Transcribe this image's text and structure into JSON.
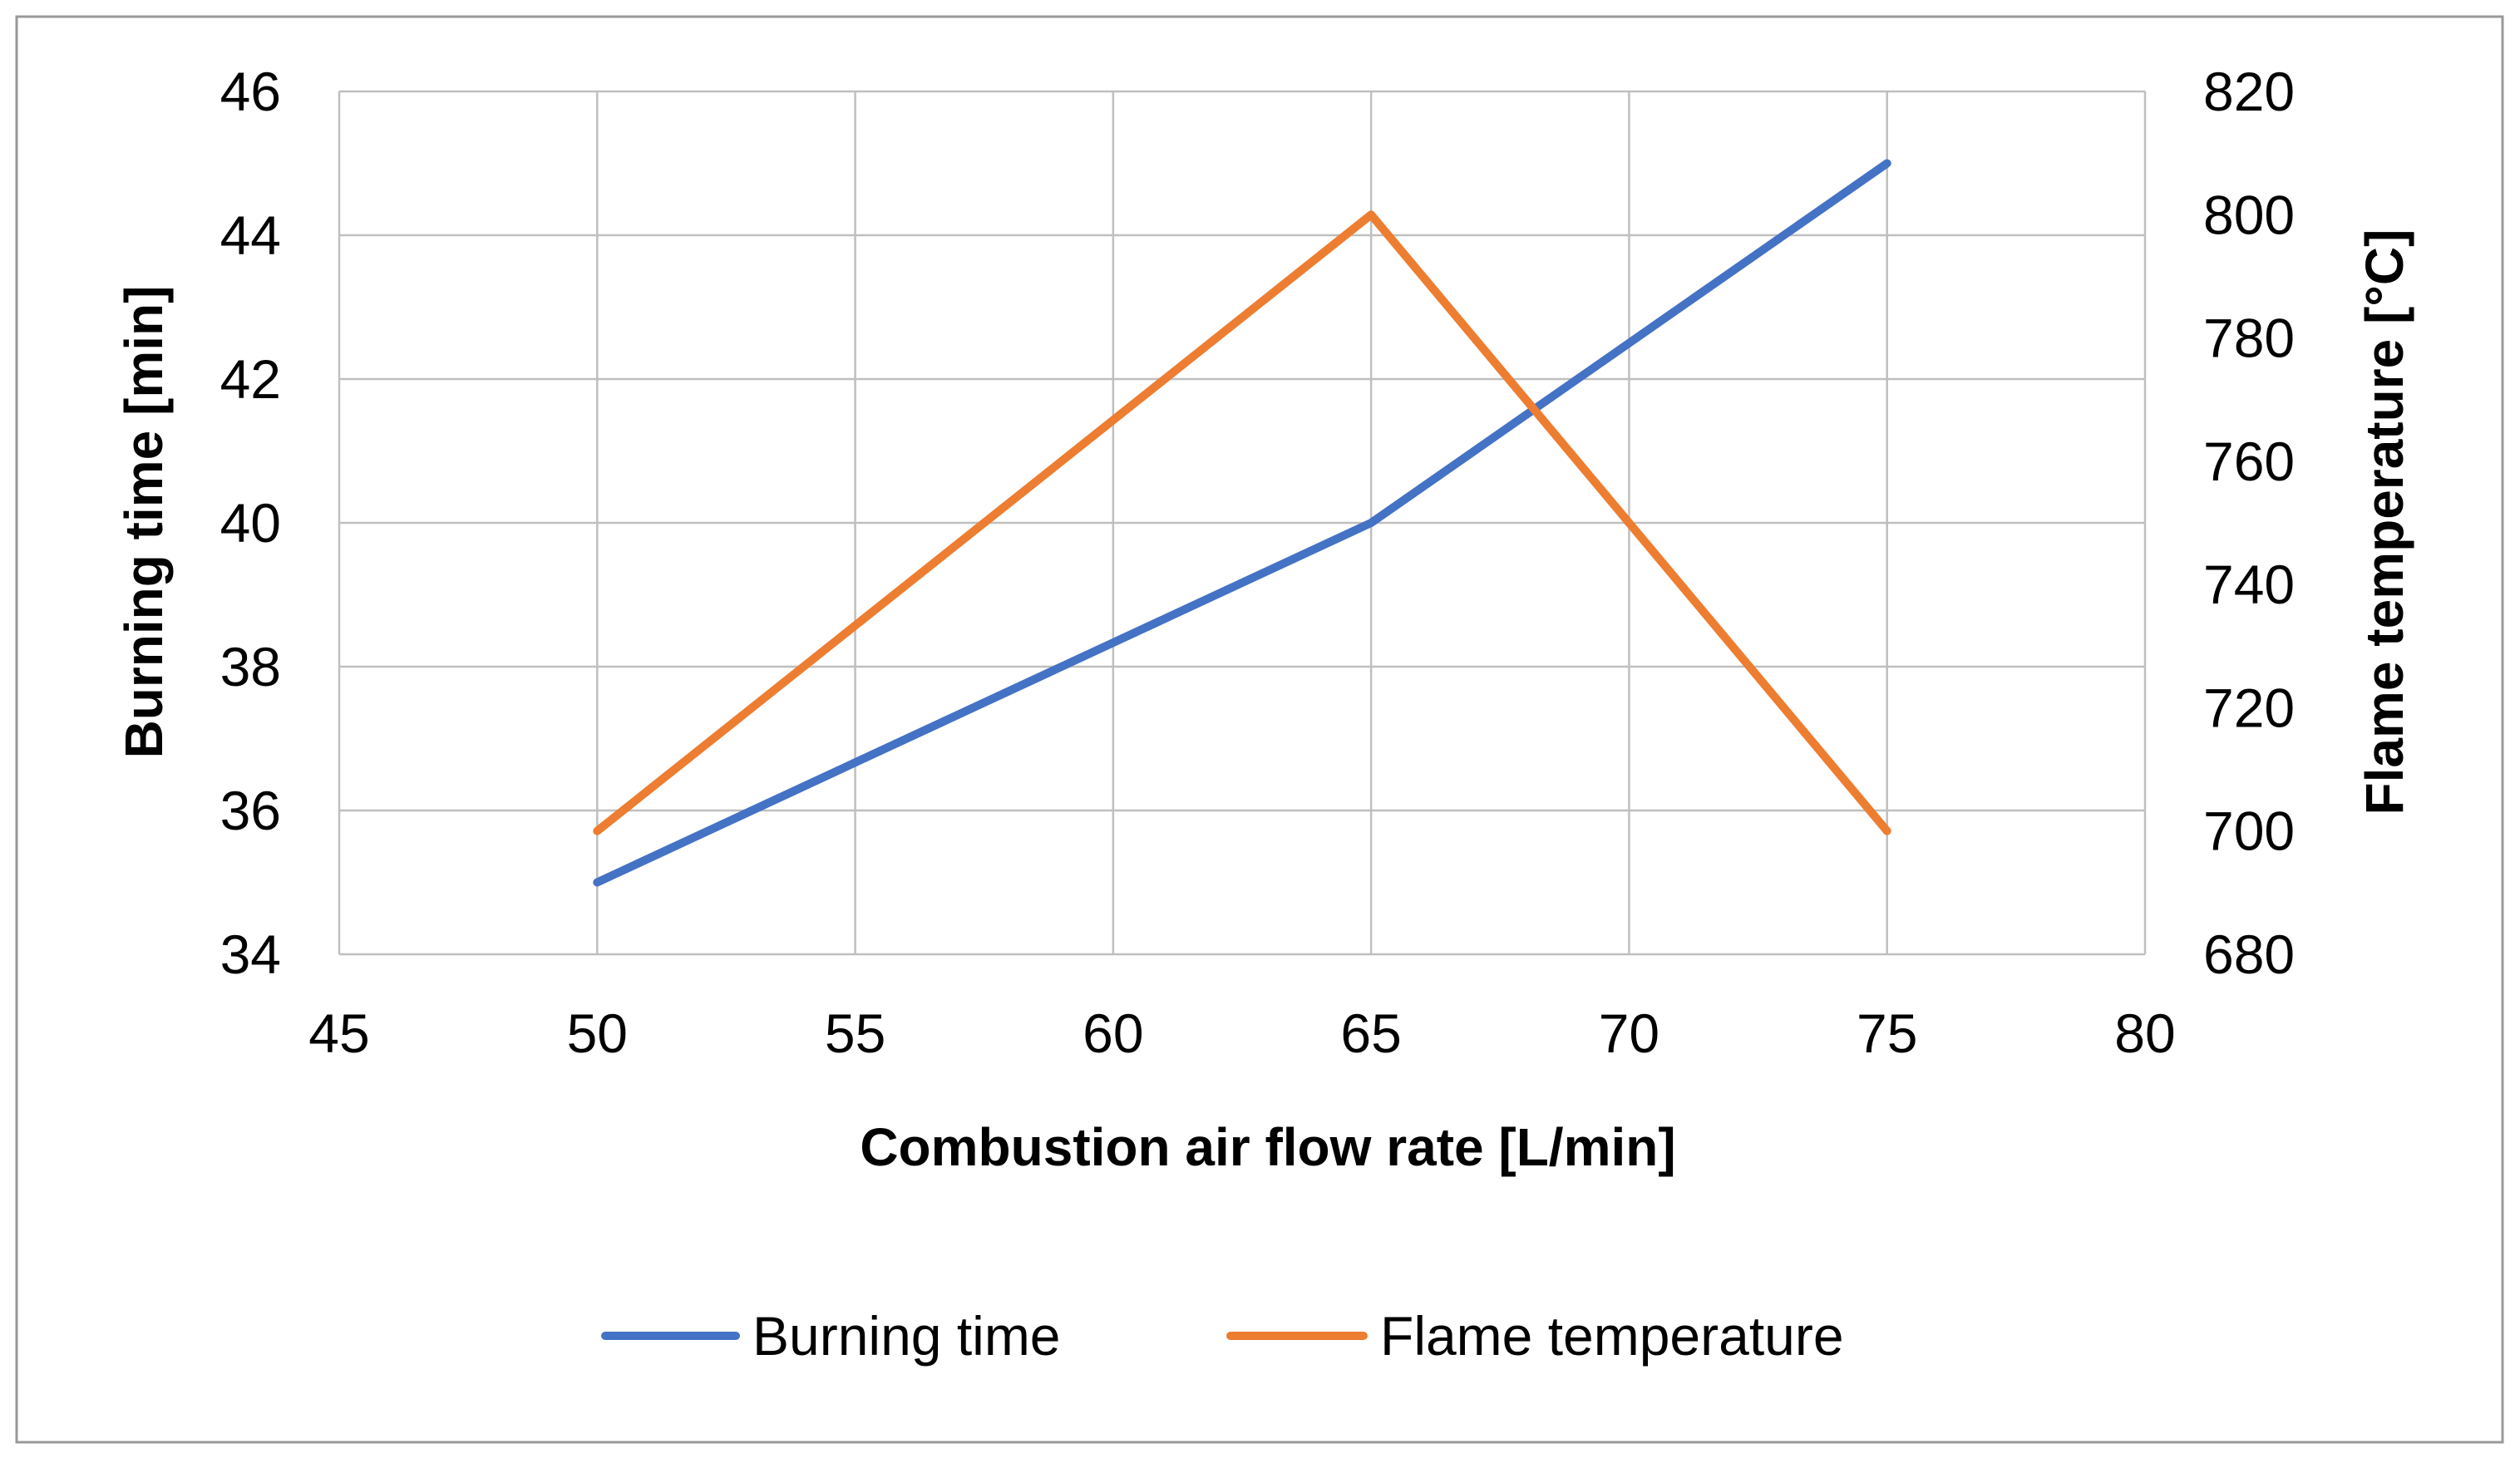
{
  "chart_data": {
    "type": "line",
    "title": "",
    "xlabel": "Combustion air flow rate [L/min]",
    "ylabel": "Burning time [min]",
    "y2label": "Flame temperature [°C]",
    "xlim": [
      45,
      80
    ],
    "ylim": [
      34,
      46
    ],
    "y2lim": [
      680,
      820
    ],
    "xticks": [
      45,
      50,
      55,
      60,
      65,
      70,
      75,
      80
    ],
    "yticks": [
      34,
      36,
      38,
      40,
      42,
      44,
      46
    ],
    "y2ticks": [
      680,
      700,
      720,
      740,
      760,
      780,
      800,
      820
    ],
    "grid": true,
    "legend_position": "bottom",
    "series": [
      {
        "name": "Burning time",
        "axis": "left",
        "color": "#4472C4",
        "x": [
          50,
          65,
          75
        ],
        "values": [
          35,
          40,
          45
        ]
      },
      {
        "name": "Flame temperature",
        "axis": "right",
        "color": "#ED7D31",
        "x": [
          50,
          65,
          75
        ],
        "values": [
          700,
          800,
          700
        ]
      }
    ]
  }
}
